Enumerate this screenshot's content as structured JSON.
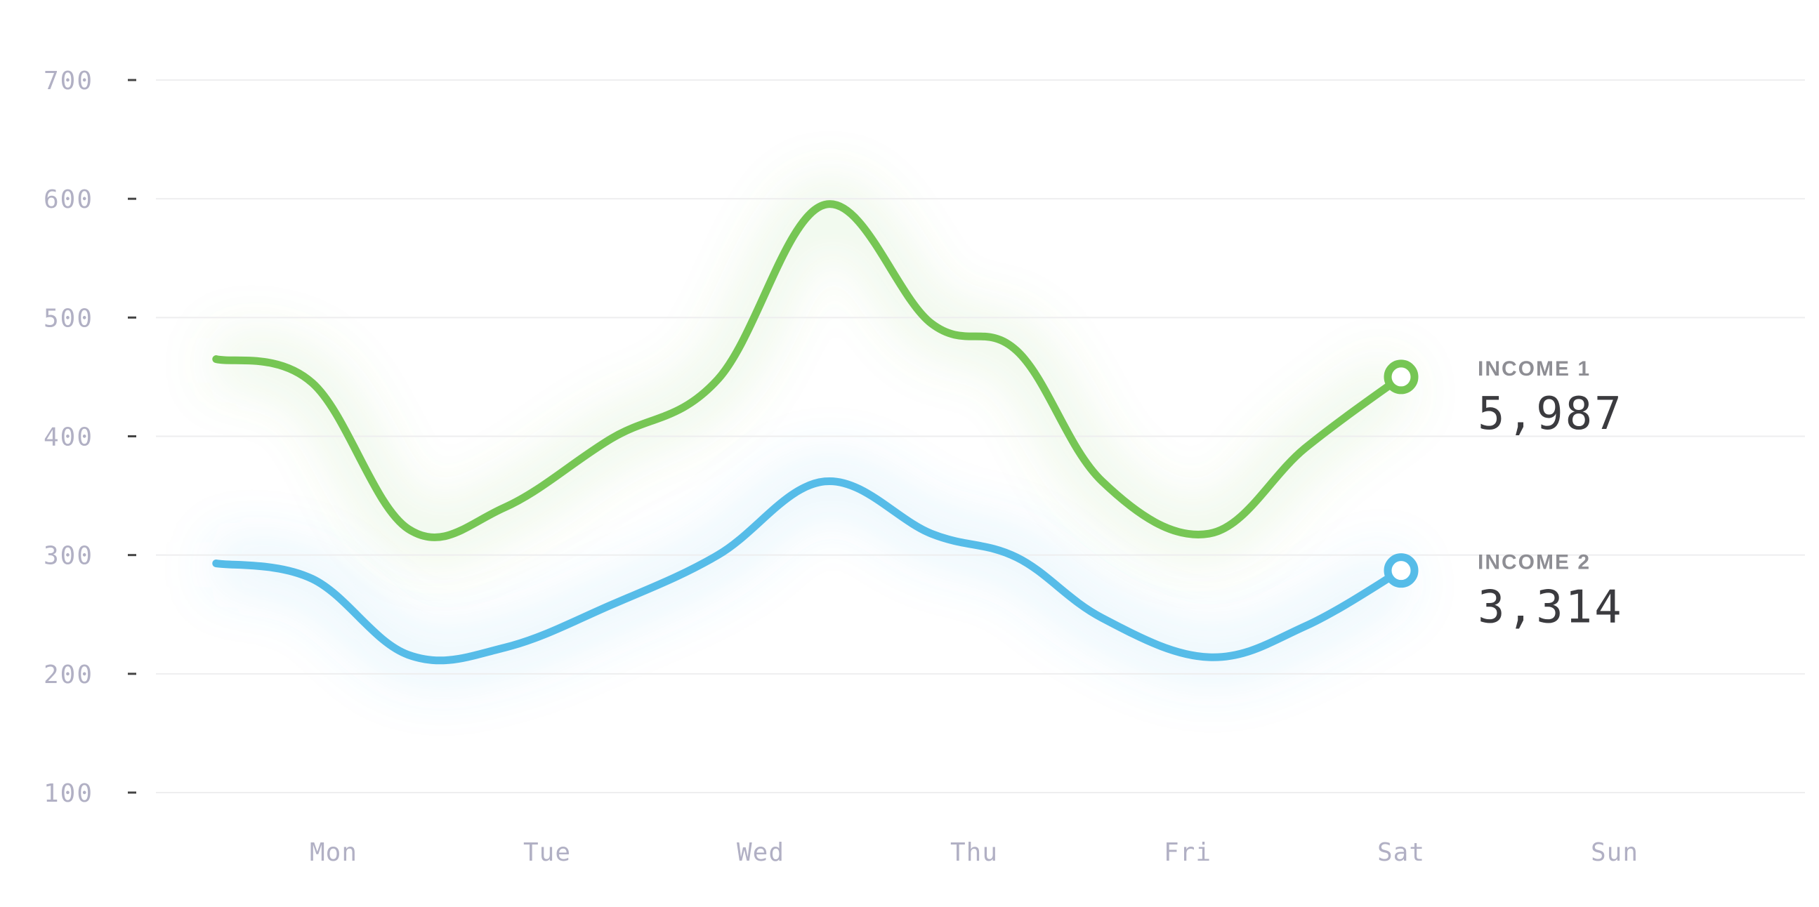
{
  "chart_data": {
    "type": "line",
    "categories": [
      "Mon",
      "Tue",
      "Wed",
      "Thu",
      "Fri",
      "Sat",
      "Sun"
    ],
    "ylim": [
      100,
      700
    ],
    "yticks": [
      "700",
      "600",
      "500",
      "400",
      "300",
      "200",
      "100"
    ],
    "grid": true,
    "curve": "smooth",
    "series": [
      {
        "name": "INCOME 1",
        "total": "5,987",
        "color": "#76c654",
        "x": [
          -0.55,
          -0.1,
          0.35,
          0.8,
          1.3,
          1.8,
          2.3,
          2.8,
          3.2,
          3.6,
          4.1,
          4.55,
          5.0
        ],
        "values": [
          465,
          445,
          322,
          340,
          398,
          448,
          595,
          495,
          472,
          362,
          318,
          390,
          450
        ]
      },
      {
        "name": "INCOME 2",
        "total": "3,314",
        "color": "#56bce8",
        "x": [
          -0.55,
          -0.1,
          0.35,
          0.8,
          1.3,
          1.8,
          2.3,
          2.8,
          3.2,
          3.6,
          4.1,
          4.55,
          5.0
        ],
        "values": [
          293,
          280,
          216,
          222,
          258,
          300,
          362,
          318,
          298,
          247,
          214,
          240,
          287
        ]
      }
    ]
  }
}
